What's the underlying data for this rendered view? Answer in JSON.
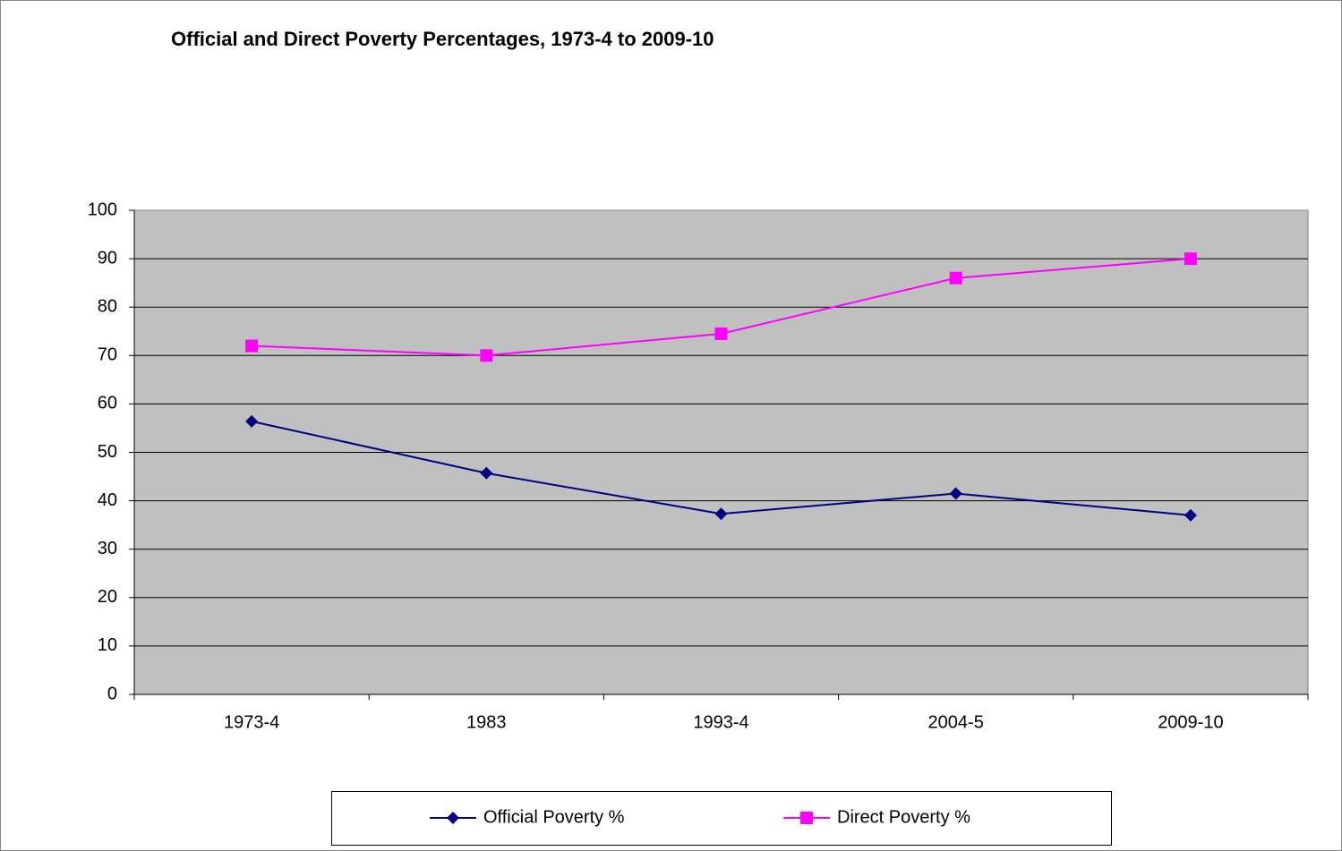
{
  "chart_data": {
    "type": "line",
    "title": "Official and Direct Poverty Percentages, 1973-4 to 2009-10",
    "categories": [
      "1973-4",
      "1983",
      "1993-4",
      "2004-5",
      "2009-10"
    ],
    "series": [
      {
        "name": "Official Poverty %",
        "color": "#000080",
        "marker": "diamond",
        "values": [
          56.4,
          45.7,
          37.3,
          41.5,
          37.0
        ]
      },
      {
        "name": "Direct Poverty %",
        "color": "#ff00ff",
        "marker": "square",
        "values": [
          72,
          70,
          74.5,
          86,
          90
        ]
      }
    ],
    "ylim": [
      0,
      100
    ],
    "yticks": [
      0,
      10,
      20,
      30,
      40,
      50,
      60,
      70,
      80,
      90,
      100
    ],
    "grid": true,
    "legend": "bottom"
  }
}
